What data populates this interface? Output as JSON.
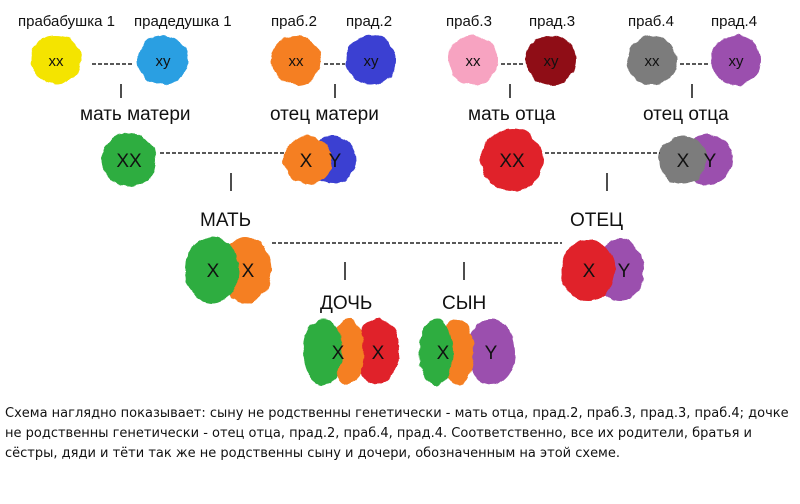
{
  "colors": {
    "yellow": "#f4e400",
    "sky": "#2a9fe2",
    "orange": "#f57f22",
    "blue": "#3a41d2",
    "pink": "#f7a3c1",
    "maroon": "#8f0b16",
    "gray": "#7c7c7c",
    "violet": "#9b4fae",
    "green": "#2fad3f",
    "red": "#e0222a"
  },
  "generations": {
    "great": [
      {
        "label": "прабабушка 1",
        "chromosomes": "хх",
        "color": "yellow"
      },
      {
        "label": "прадедушка 1",
        "chromosomes": "ху",
        "color": "sky"
      },
      {
        "label": "праб.2",
        "chromosomes": "хх",
        "color": "orange"
      },
      {
        "label": "прад.2",
        "chromosomes": "ху",
        "color": "blue"
      },
      {
        "label": "праб.3",
        "chromosomes": "хх",
        "color": "pink"
      },
      {
        "label": "прад.3",
        "chromosomes": "ху",
        "color": "maroon"
      },
      {
        "label": "праб.4",
        "chromosomes": "хх",
        "color": "gray"
      },
      {
        "label": "прад.4",
        "chromosomes": "ху",
        "color": "violet"
      }
    ],
    "grand": [
      {
        "label": "мать матери",
        "chromosomes": "XX"
      },
      {
        "label": "отец матери",
        "left": "X",
        "right": "Y"
      },
      {
        "label": "мать отца",
        "chromosomes": "XX"
      },
      {
        "label": "отец отца",
        "left": "X",
        "right": "Y"
      }
    ],
    "parents": [
      {
        "label": "МАТЬ",
        "left": "X",
        "right": "X"
      },
      {
        "label": "ОТЕЦ",
        "left": "X",
        "right": "Y"
      }
    ],
    "children": [
      {
        "label": "ДОЧЬ",
        "left": "X",
        "right": "X"
      },
      {
        "label": "СЫН",
        "left": "X",
        "right": "Y"
      }
    ]
  },
  "caption": "Схема наглядно показывает: сыну не родственны генетически - мать отца, прад.2, праб.3, прад.3, праб.4; дочке не родственны генетически - отец отца, прад.2, праб.4, прад.4. Соответственно, все их родители, братья и сёстры, дяди и тёти так же не родственны сыну и дочери, обозначенным на этой схеме."
}
